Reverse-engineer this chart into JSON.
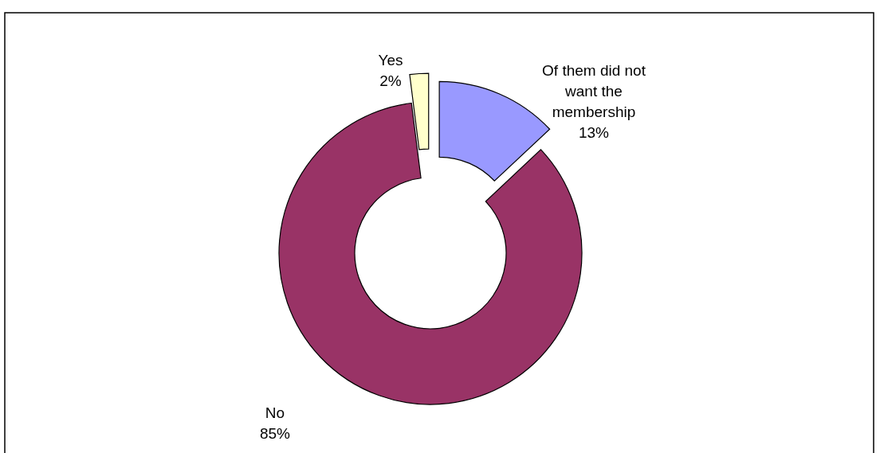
{
  "chart_data": {
    "type": "donut",
    "categories": [
      "Of them did not want the membership",
      "No",
      "Yes"
    ],
    "values": [
      13,
      85,
      2
    ],
    "value_labels": [
      "13%",
      "85%",
      "2%"
    ],
    "colors": [
      "#9999ff",
      "#993366",
      "#ffffcc"
    ]
  }
}
